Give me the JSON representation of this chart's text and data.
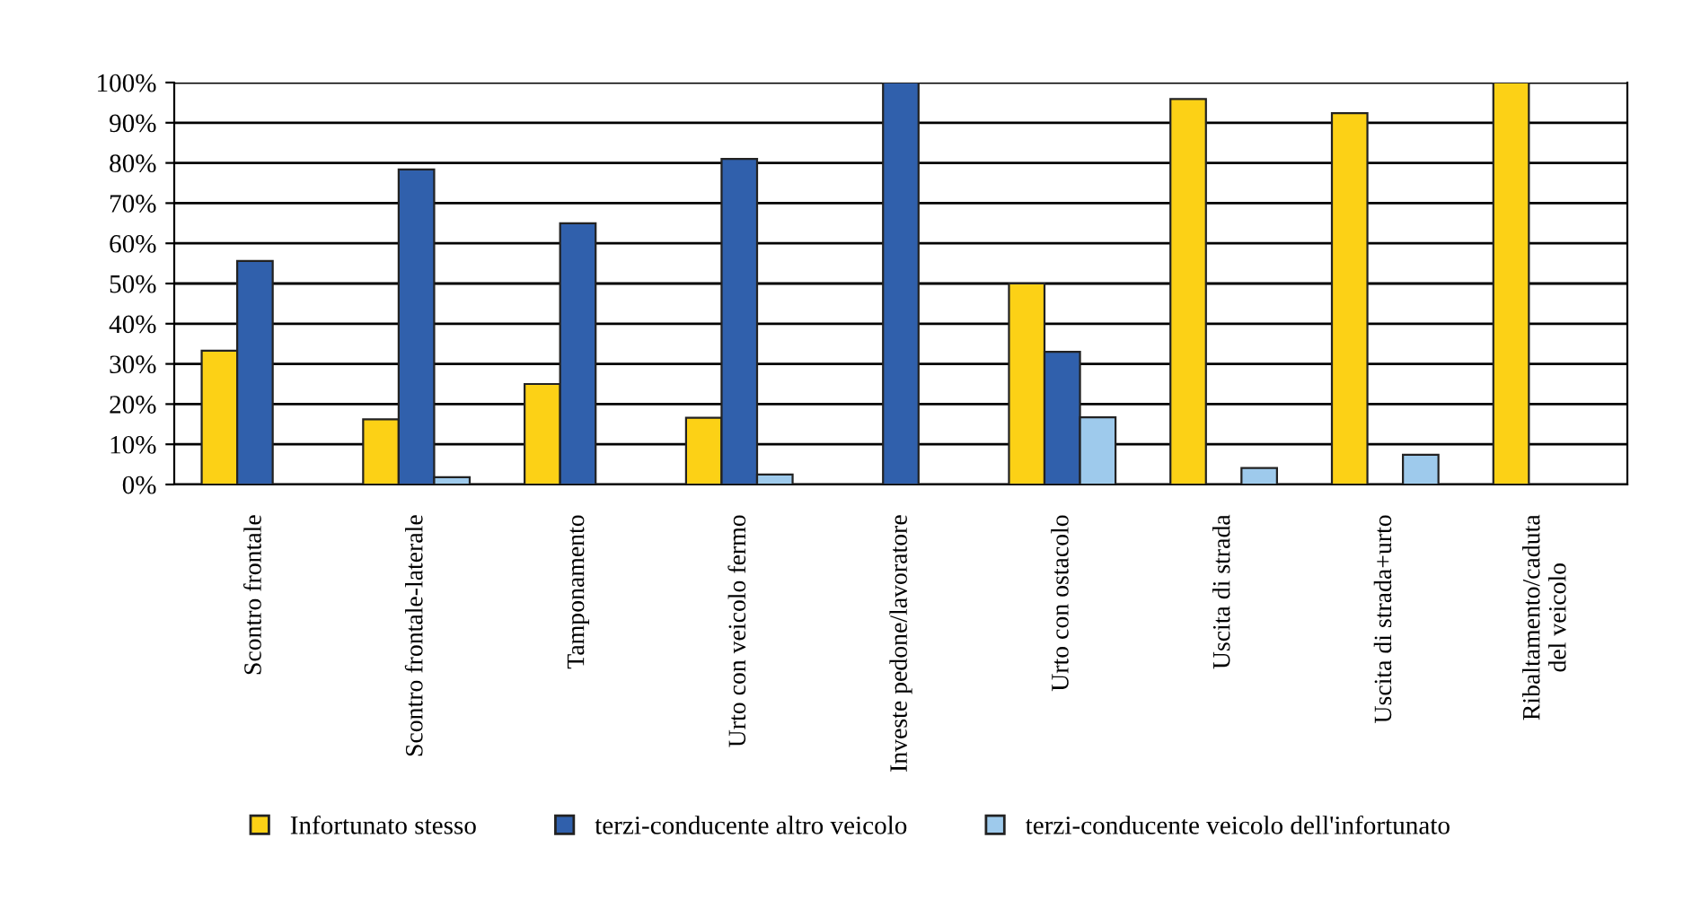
{
  "chart_data": {
    "type": "bar",
    "categories": [
      "Scontro frontale",
      "Scontro frontale-laterale",
      "Tamponamento",
      "Urto con veicolo fermo",
      "Investe pedone/lavoratore",
      "Urto con ostacolo",
      "Uscita di strada",
      "Uscita di strada+urto",
      "Ribaltamento/caduta\ndel veicolo"
    ],
    "series": [
      {
        "name": "Infortunato stesso",
        "color": "#fcd116",
        "values": [
          33.3,
          16.2,
          25,
          16.6,
          null,
          50,
          95.9,
          92.4,
          100
        ]
      },
      {
        "name": "terzi-conducente altro veicolo",
        "color": "#3060ac",
        "values": [
          55.6,
          78.4,
          65,
          81,
          100,
          33,
          null,
          null,
          null
        ]
      },
      {
        "name": "terzi-conducente veicolo dell'infortunato",
        "color": "#9ecaec",
        "values": [
          null,
          1.8,
          null,
          2.5,
          null,
          16.7,
          4.1,
          7.4,
          null
        ]
      }
    ],
    "ylim": [
      0,
      100
    ],
    "yticks": [
      {
        "value": 0,
        "label": "0%"
      },
      {
        "value": 10,
        "label": "10%"
      },
      {
        "value": 20,
        "label": "20%"
      },
      {
        "value": 30,
        "label": "30%"
      },
      {
        "value": 40,
        "label": "40%"
      },
      {
        "value": 50,
        "label": "50%"
      },
      {
        "value": 60,
        "label": "60%"
      },
      {
        "value": 70,
        "label": "70%"
      },
      {
        "value": 80,
        "label": "80%"
      },
      {
        "value": 90,
        "label": "90%"
      },
      {
        "value": 100,
        "label": "100%"
      }
    ],
    "grid": "y",
    "legend": "bottom"
  }
}
